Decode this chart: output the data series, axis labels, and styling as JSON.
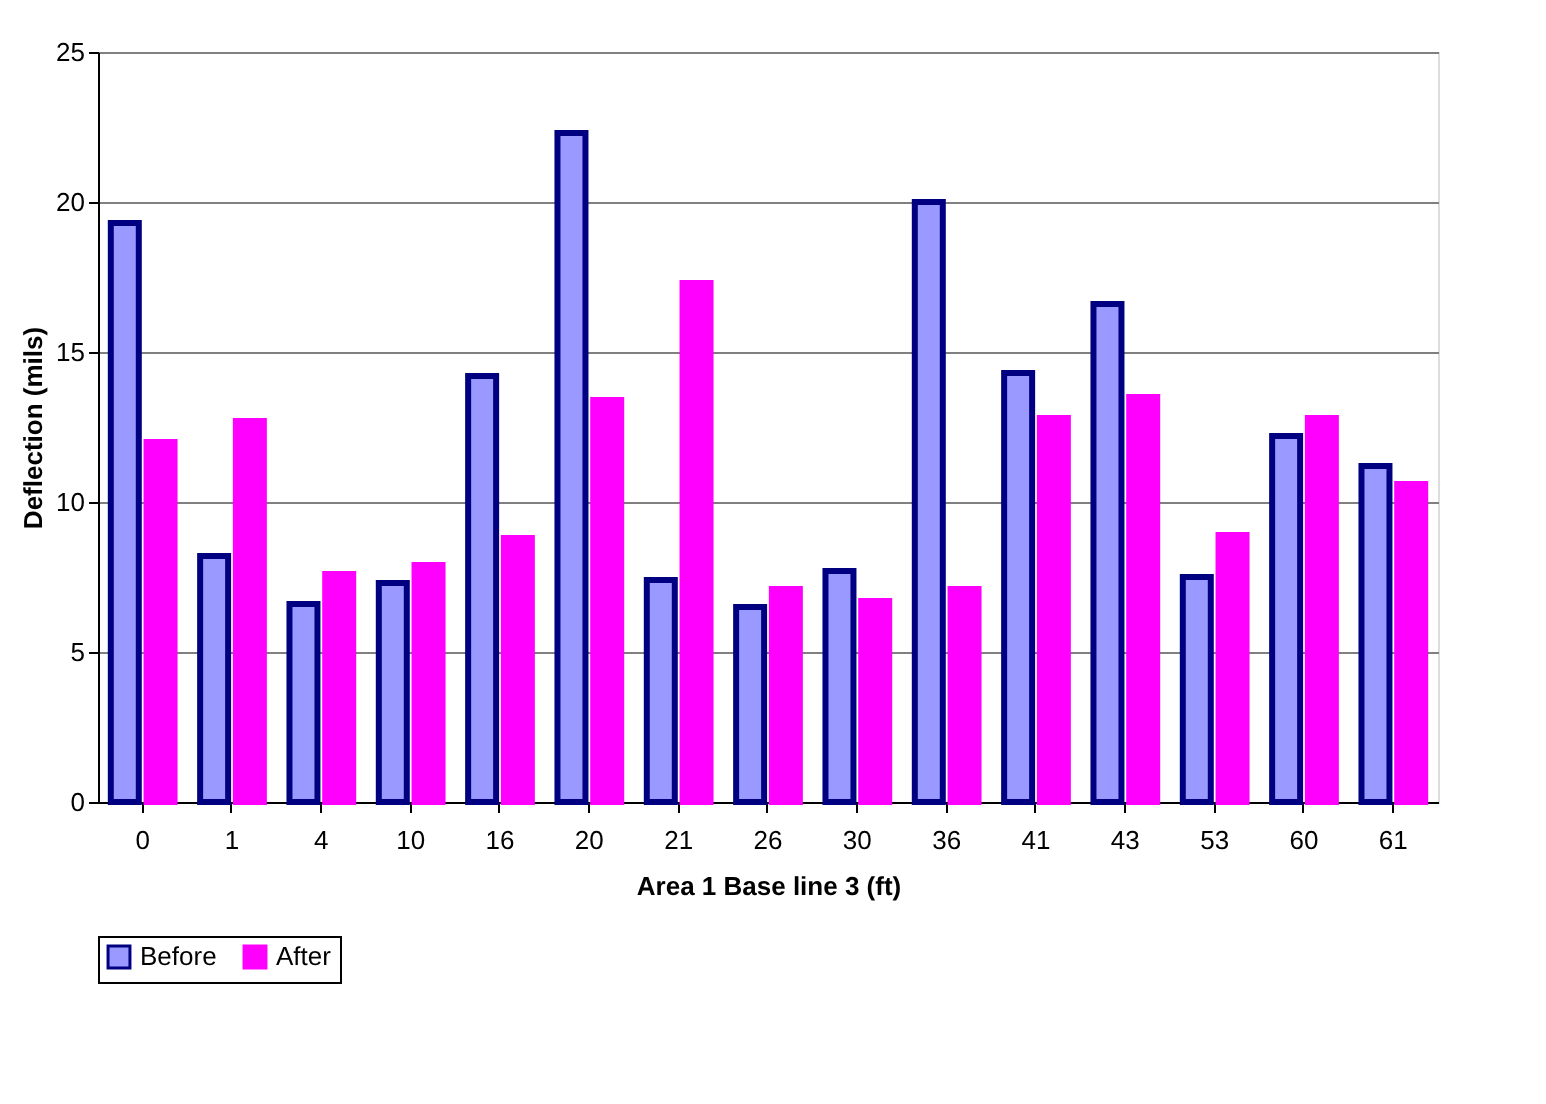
{
  "chart_data": {
    "type": "bar",
    "xlabel": "Area 1 Base line 3 (ft)",
    "ylabel": "Deflection (mils)",
    "categories": [
      "0",
      "1",
      "4",
      "10",
      "16",
      "20",
      "21",
      "26",
      "30",
      "36",
      "41",
      "43",
      "53",
      "60",
      "61"
    ],
    "series": [
      {
        "name": "Before",
        "color": "#9999ff",
        "values": [
          19.3,
          8.2,
          6.6,
          7.3,
          14.2,
          22.3,
          7.4,
          6.5,
          7.7,
          20.0,
          14.3,
          16.6,
          7.5,
          12.2,
          11.2
        ]
      },
      {
        "name": "After",
        "color": "#ff00ff",
        "values": [
          12.0,
          12.7,
          7.6,
          7.9,
          8.8,
          13.4,
          17.3,
          7.1,
          6.7,
          7.1,
          12.8,
          13.5,
          8.9,
          12.8,
          10.6
        ]
      }
    ],
    "ylim": [
      0,
      25
    ],
    "yticks": [
      0,
      5,
      10,
      15,
      20,
      25
    ],
    "grid": "y",
    "legend": "bottom"
  }
}
